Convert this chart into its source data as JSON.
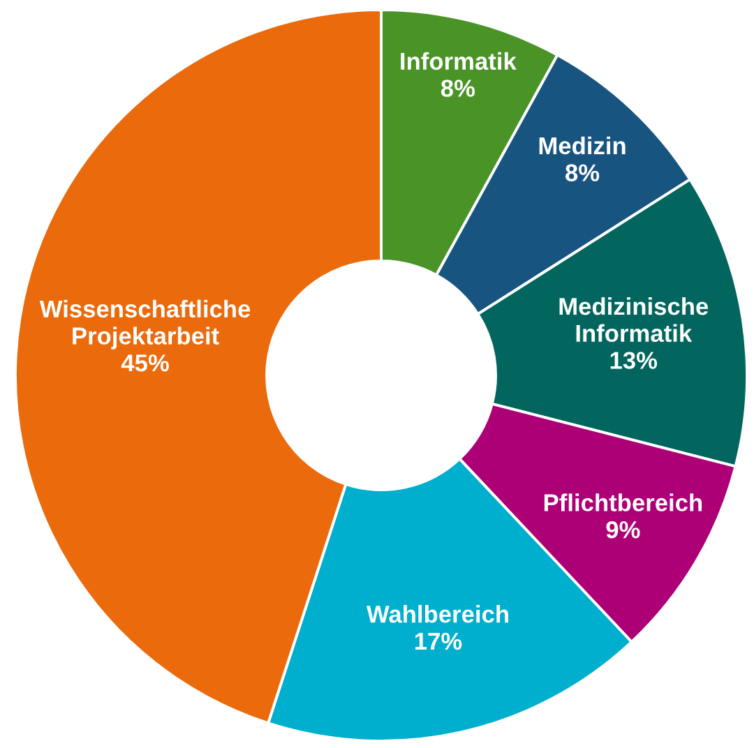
{
  "chart_data": {
    "type": "donut",
    "categories": [
      "Informatik",
      "Medizin",
      "Medizinische Informatik",
      "Pflichtbereich",
      "Wahlbereich",
      "Wissenschaftliche Projektarbeit"
    ],
    "values": [
      8,
      8,
      13,
      9,
      17,
      45
    ],
    "value_labels": [
      "8%",
      "8%",
      "13%",
      "9%",
      "17%",
      "45%"
    ],
    "colors": [
      "#4a9327",
      "#185480",
      "#02665f",
      "#ad0077",
      "#00aecd",
      "#ea6a0c"
    ],
    "legend": false
  }
}
